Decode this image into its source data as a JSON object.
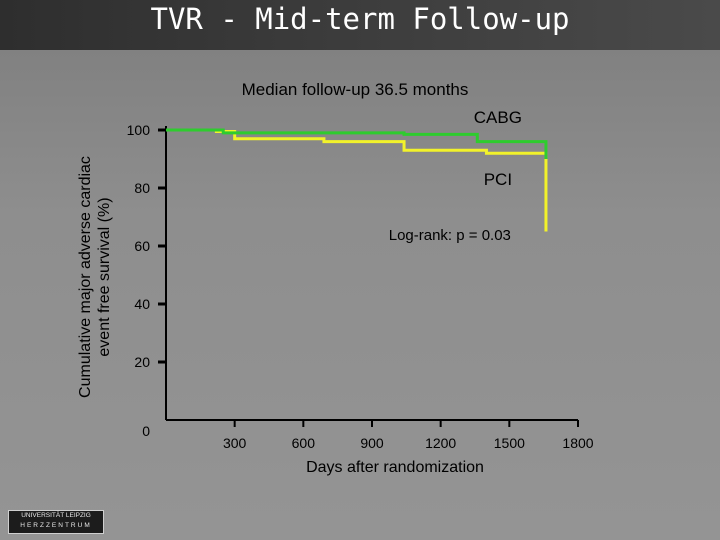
{
  "slide": {
    "title": "TVR - Mid-term Follow-up",
    "subtitle": "Median follow-up 36.5 months",
    "logo_line1": "UNIVERSITÄT LEIPZIG",
    "logo_line2": "HERZZENTRUM"
  },
  "chart_data": {
    "type": "line",
    "title": "Median follow-up 36.5 months",
    "xlabel": "Days after randomization",
    "ylabel_line1": "Cumulative major adverse cardiac",
    "ylabel_line2": "event free survival (%)",
    "xlim": [
      0,
      1800
    ],
    "ylim": [
      0,
      100
    ],
    "x_ticks": [
      0,
      300,
      600,
      900,
      1200,
      1500,
      1800
    ],
    "x_tick_labels": [
      "0",
      "300",
      "600",
      "900",
      "1200",
      "1500",
      "1800"
    ],
    "y_ticks": [
      20,
      40,
      60,
      80,
      100
    ],
    "y_tick_labels": [
      "20",
      "40",
      "60",
      "80",
      "100"
    ],
    "series": [
      {
        "name": "CABG",
        "color": "#2ecc2e",
        "step": true,
        "x": [
          0,
          250,
          1040,
          1360,
          1660,
          1660
        ],
        "y": [
          100,
          99,
          98.5,
          96,
          91,
          90
        ]
      },
      {
        "name": "PCI",
        "color": "#f2f22a",
        "step": true,
        "x": [
          0,
          220,
          300,
          690,
          1040,
          1400,
          1660,
          1660
        ],
        "y": [
          100,
          99.5,
          97,
          96,
          93,
          92,
          86,
          65
        ]
      }
    ],
    "annotations": [
      {
        "text": "CABG",
        "x": 1450,
        "y": 102.5
      },
      {
        "text": "PCI",
        "x": 1450,
        "y": 81
      },
      {
        "text": "Log-rank: p = 0.03",
        "x": 1240,
        "y": 62
      }
    ]
  }
}
